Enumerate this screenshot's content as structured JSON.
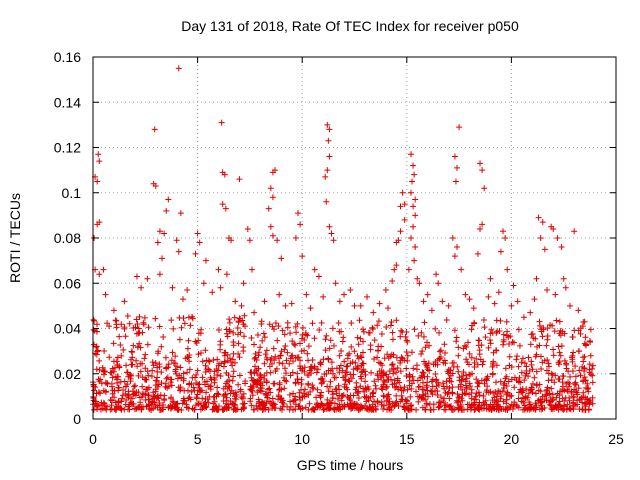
{
  "chart_data": {
    "type": "scatter",
    "title": "Day 131 of 2018, Rate Of TEC Index for receiver p050",
    "xlabel": "GPS time / hours",
    "ylabel": "ROTI / TECUs",
    "xlim": [
      0,
      25
    ],
    "ylim": [
      0,
      0.16
    ],
    "x_ticks": [
      0,
      5,
      10,
      15,
      20,
      25
    ],
    "y_ticks": [
      0,
      0.02,
      0.04,
      0.06,
      0.08,
      0.1,
      0.12,
      0.14,
      0.16
    ],
    "x_tick_labels": [
      "0",
      "5",
      "10",
      "15",
      "20",
      "25"
    ],
    "y_tick_labels": [
      "0",
      "0.02",
      "0.04",
      "0.06",
      "0.08",
      "0.1",
      "0.12",
      "0.14",
      "0.16"
    ],
    "grid": true,
    "marker": "plus",
    "marker_color": "#e00000",
    "series": [
      {
        "name": "p050",
        "points": [
          [
            0.1,
            0.107
          ],
          [
            0.2,
            0.105
          ],
          [
            0.25,
            0.117
          ],
          [
            0.3,
            0.114
          ],
          [
            0.2,
            0.086
          ],
          [
            0.3,
            0.087
          ],
          [
            0.05,
            0.08
          ],
          [
            0.1,
            0.066
          ],
          [
            0.3,
            0.064
          ],
          [
            0.5,
            0.066
          ],
          [
            2.95,
            0.128
          ],
          [
            2.9,
            0.104
          ],
          [
            3.0,
            0.103
          ],
          [
            3.2,
            0.083
          ],
          [
            3.1,
            0.078
          ],
          [
            4.1,
            0.155
          ],
          [
            3.6,
            0.097
          ],
          [
            3.5,
            0.092
          ],
          [
            3.4,
            0.082
          ],
          [
            4.2,
            0.091
          ],
          [
            4.0,
            0.079
          ],
          [
            4.1,
            0.074
          ],
          [
            3.3,
            0.071
          ],
          [
            3.2,
            0.064
          ],
          [
            5.0,
            0.082
          ],
          [
            5.1,
            0.078
          ],
          [
            4.9,
            0.073
          ],
          [
            5.4,
            0.07
          ],
          [
            6.15,
            0.131
          ],
          [
            6.2,
            0.109
          ],
          [
            6.3,
            0.108
          ],
          [
            6.2,
            0.095
          ],
          [
            6.35,
            0.093
          ],
          [
            6.5,
            0.08
          ],
          [
            6.6,
            0.079
          ],
          [
            7.0,
            0.106
          ],
          [
            6.0,
            0.066
          ],
          [
            6.4,
            0.064
          ],
          [
            7.4,
            0.084
          ],
          [
            7.5,
            0.079
          ],
          [
            7.6,
            0.066
          ],
          [
            7.2,
            0.06
          ],
          [
            8.6,
            0.109
          ],
          [
            8.7,
            0.11
          ],
          [
            8.5,
            0.102
          ],
          [
            8.6,
            0.098
          ],
          [
            8.4,
            0.093
          ],
          [
            8.5,
            0.085
          ],
          [
            8.6,
            0.081
          ],
          [
            8.8,
            0.079
          ],
          [
            9.0,
            0.071
          ],
          [
            9.8,
            0.091
          ],
          [
            9.9,
            0.086
          ],
          [
            9.7,
            0.08
          ],
          [
            10.0,
            0.072
          ],
          [
            10.6,
            0.066
          ],
          [
            10.8,
            0.063
          ],
          [
            11.2,
            0.13
          ],
          [
            11.3,
            0.128
          ],
          [
            11.25,
            0.123
          ],
          [
            11.3,
            0.116
          ],
          [
            11.2,
            0.11
          ],
          [
            11.1,
            0.107
          ],
          [
            11.15,
            0.096
          ],
          [
            11.3,
            0.085
          ],
          [
            11.4,
            0.082
          ],
          [
            11.5,
            0.079
          ],
          [
            12.3,
            0.057
          ],
          [
            12.0,
            0.055
          ],
          [
            12.5,
            0.05
          ],
          [
            14.0,
            0.057
          ],
          [
            14.3,
            0.061
          ],
          [
            14.5,
            0.078
          ],
          [
            14.6,
            0.079
          ],
          [
            14.7,
            0.094
          ],
          [
            14.8,
            0.1
          ],
          [
            14.9,
            0.088
          ],
          [
            14.7,
            0.083
          ],
          [
            14.9,
            0.095
          ],
          [
            14.5,
            0.068
          ],
          [
            14.4,
            0.066
          ],
          [
            15.2,
            0.117
          ],
          [
            15.3,
            0.112
          ],
          [
            15.25,
            0.105
          ],
          [
            15.35,
            0.108
          ],
          [
            15.2,
            0.1
          ],
          [
            15.4,
            0.097
          ],
          [
            15.3,
            0.094
          ],
          [
            15.4,
            0.09
          ],
          [
            15.3,
            0.085
          ],
          [
            15.2,
            0.08
          ],
          [
            15.4,
            0.076
          ],
          [
            15.35,
            0.07
          ],
          [
            15.1,
            0.066
          ],
          [
            15.5,
            0.062
          ],
          [
            15.6,
            0.06
          ],
          [
            16.4,
            0.064
          ],
          [
            16.5,
            0.06
          ],
          [
            17.5,
            0.129
          ],
          [
            17.3,
            0.116
          ],
          [
            17.4,
            0.111
          ],
          [
            17.35,
            0.105
          ],
          [
            17.2,
            0.08
          ],
          [
            17.4,
            0.076
          ],
          [
            17.3,
            0.072
          ],
          [
            17.6,
            0.066
          ],
          [
            18.5,
            0.113
          ],
          [
            18.6,
            0.11
          ],
          [
            18.7,
            0.102
          ],
          [
            18.6,
            0.086
          ],
          [
            18.5,
            0.084
          ],
          [
            18.4,
            0.073
          ],
          [
            19.0,
            0.062
          ],
          [
            19.6,
            0.083
          ],
          [
            19.7,
            0.08
          ],
          [
            19.5,
            0.074
          ],
          [
            19.8,
            0.066
          ],
          [
            20.1,
            0.059
          ],
          [
            21.3,
            0.089
          ],
          [
            21.5,
            0.087
          ],
          [
            21.4,
            0.08
          ],
          [
            21.6,
            0.075
          ],
          [
            21.2,
            0.062
          ],
          [
            21.9,
            0.085
          ],
          [
            22.0,
            0.084
          ],
          [
            22.2,
            0.08
          ],
          [
            22.4,
            0.076
          ],
          [
            23.0,
            0.083
          ],
          [
            22.5,
            0.062
          ],
          [
            22.6,
            0.058
          ],
          [
            0.6,
            0.055
          ],
          [
            1.0,
            0.048
          ],
          [
            1.5,
            0.052
          ],
          [
            2.1,
            0.063
          ],
          [
            2.3,
            0.058
          ],
          [
            2.6,
            0.062
          ],
          [
            3.8,
            0.058
          ],
          [
            4.3,
            0.053
          ],
          [
            4.5,
            0.057
          ],
          [
            5.3,
            0.06
          ],
          [
            5.7,
            0.056
          ],
          [
            6.1,
            0.058
          ],
          [
            6.8,
            0.052
          ],
          [
            7.1,
            0.05
          ],
          [
            7.7,
            0.047
          ],
          [
            8.2,
            0.052
          ],
          [
            8.9,
            0.055
          ],
          [
            9.2,
            0.05
          ],
          [
            9.5,
            0.051
          ],
          [
            10.2,
            0.055
          ],
          [
            10.4,
            0.049
          ],
          [
            11.0,
            0.054
          ],
          [
            11.6,
            0.06
          ],
          [
            11.8,
            0.052
          ],
          [
            12.8,
            0.05
          ],
          [
            13.1,
            0.054
          ],
          [
            13.4,
            0.047
          ],
          [
            13.7,
            0.051
          ],
          [
            14.1,
            0.049
          ],
          [
            15.8,
            0.052
          ],
          [
            16.0,
            0.055
          ],
          [
            16.2,
            0.048
          ],
          [
            16.7,
            0.052
          ],
          [
            17.0,
            0.05
          ],
          [
            17.8,
            0.055
          ],
          [
            18.0,
            0.053
          ],
          [
            18.2,
            0.049
          ],
          [
            18.9,
            0.054
          ],
          [
            19.2,
            0.051
          ],
          [
            19.4,
            0.056
          ],
          [
            20.0,
            0.05
          ],
          [
            20.3,
            0.052
          ],
          [
            20.6,
            0.045
          ],
          [
            20.9,
            0.047
          ],
          [
            21.1,
            0.053
          ],
          [
            21.7,
            0.057
          ],
          [
            22.1,
            0.055
          ],
          [
            22.8,
            0.05
          ],
          [
            23.2,
            0.048
          ],
          [
            23.5,
            0.043
          ]
        ]
      }
    ],
    "dense_band": {
      "description": "dense cloud of points near baseline",
      "segments": [
        {
          "x": [
            0.0,
            7.3
          ],
          "low": 0.004,
          "high": 0.03
        },
        {
          "x": [
            7.5,
            23.9
          ],
          "low": 0.004,
          "high": 0.028
        }
      ]
    }
  }
}
